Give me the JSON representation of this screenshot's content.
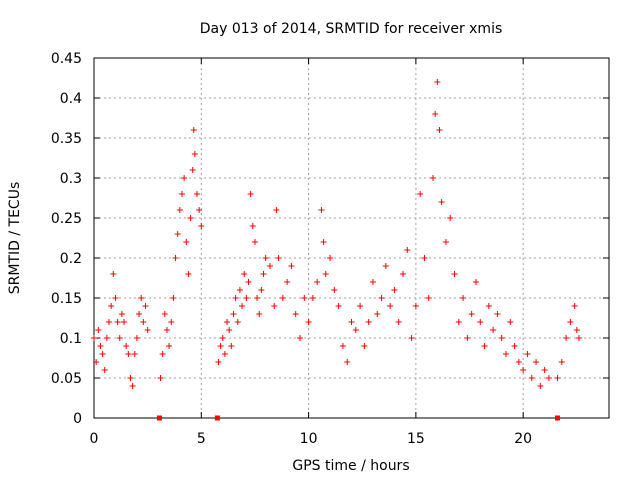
{
  "chart_data": {
    "type": "scatter",
    "title": "Day 013 of 2014, SRMTID for receiver xmis",
    "xlabel": "GPS time / hours",
    "ylabel": "SRMTID / TECUs",
    "xlim": [
      0,
      24
    ],
    "ylim": [
      0,
      0.45
    ],
    "xticks": [
      0,
      5,
      10,
      15,
      20
    ],
    "xtick_labels": [
      "0",
      "5",
      "10",
      "15",
      "20"
    ],
    "yticks": [
      0,
      0.05,
      0.1,
      0.15,
      0.2,
      0.25,
      0.3,
      0.35,
      0.4,
      0.45
    ],
    "ytick_labels": [
      "0",
      "0.05",
      "0.1",
      "0.15",
      "0.2",
      "0.25",
      "0.3",
      "0.35",
      "0.4",
      "0.45"
    ],
    "grid": true,
    "marker": "plus",
    "series_color": "#ff0000",
    "series": [
      {
        "name": "SRMTID",
        "points": [
          [
            0.0,
            0.1
          ],
          [
            0.1,
            0.07
          ],
          [
            0.2,
            0.11
          ],
          [
            0.3,
            0.09
          ],
          [
            0.4,
            0.08
          ],
          [
            0.5,
            0.06
          ],
          [
            0.6,
            0.1
          ],
          [
            0.7,
            0.12
          ],
          [
            0.8,
            0.14
          ],
          [
            0.9,
            0.18
          ],
          [
            1.0,
            0.15
          ],
          [
            1.1,
            0.12
          ],
          [
            1.2,
            0.1
          ],
          [
            1.3,
            0.13
          ],
          [
            1.4,
            0.12
          ],
          [
            1.5,
            0.09
          ],
          [
            1.6,
            0.08
          ],
          [
            1.7,
            0.05
          ],
          [
            1.8,
            0.04
          ],
          [
            1.9,
            0.08
          ],
          [
            2.0,
            0.1
          ],
          [
            2.1,
            0.13
          ],
          [
            2.2,
            0.15
          ],
          [
            2.3,
            0.12
          ],
          [
            2.4,
            0.14
          ],
          [
            2.5,
            0.11
          ],
          [
            3.1,
            0.05
          ],
          [
            3.2,
            0.08
          ],
          [
            3.3,
            0.13
          ],
          [
            3.4,
            0.11
          ],
          [
            3.5,
            0.09
          ],
          [
            3.6,
            0.12
          ],
          [
            3.7,
            0.15
          ],
          [
            3.8,
            0.2
          ],
          [
            3.9,
            0.23
          ],
          [
            4.0,
            0.26
          ],
          [
            4.1,
            0.28
          ],
          [
            4.2,
            0.3
          ],
          [
            4.3,
            0.22
          ],
          [
            4.4,
            0.18
          ],
          [
            4.5,
            0.25
          ],
          [
            4.6,
            0.31
          ],
          [
            4.65,
            0.36
          ],
          [
            4.7,
            0.33
          ],
          [
            4.8,
            0.28
          ],
          [
            4.9,
            0.26
          ],
          [
            5.0,
            0.24
          ],
          [
            5.8,
            0.07
          ],
          [
            5.9,
            0.09
          ],
          [
            6.0,
            0.1
          ],
          [
            6.1,
            0.08
          ],
          [
            6.2,
            0.12
          ],
          [
            6.3,
            0.11
          ],
          [
            6.4,
            0.09
          ],
          [
            6.5,
            0.13
          ],
          [
            6.6,
            0.15
          ],
          [
            6.7,
            0.12
          ],
          [
            6.8,
            0.16
          ],
          [
            6.9,
            0.14
          ],
          [
            7.0,
            0.18
          ],
          [
            7.1,
            0.15
          ],
          [
            7.2,
            0.17
          ],
          [
            7.3,
            0.28
          ],
          [
            7.4,
            0.24
          ],
          [
            7.5,
            0.22
          ],
          [
            7.6,
            0.15
          ],
          [
            7.7,
            0.13
          ],
          [
            7.8,
            0.16
          ],
          [
            7.9,
            0.18
          ],
          [
            8.0,
            0.2
          ],
          [
            8.2,
            0.19
          ],
          [
            8.4,
            0.14
          ],
          [
            8.5,
            0.26
          ],
          [
            8.6,
            0.2
          ],
          [
            8.8,
            0.15
          ],
          [
            9.0,
            0.17
          ],
          [
            9.2,
            0.19
          ],
          [
            9.4,
            0.13
          ],
          [
            9.6,
            0.1
          ],
          [
            9.8,
            0.15
          ],
          [
            10.0,
            0.12
          ],
          [
            10.2,
            0.15
          ],
          [
            10.4,
            0.17
          ],
          [
            10.6,
            0.26
          ],
          [
            10.7,
            0.22
          ],
          [
            10.8,
            0.18
          ],
          [
            11.0,
            0.2
          ],
          [
            11.2,
            0.16
          ],
          [
            11.4,
            0.14
          ],
          [
            11.6,
            0.09
          ],
          [
            11.8,
            0.07
          ],
          [
            12.0,
            0.12
          ],
          [
            12.2,
            0.11
          ],
          [
            12.4,
            0.14
          ],
          [
            12.6,
            0.09
          ],
          [
            12.8,
            0.12
          ],
          [
            13.0,
            0.17
          ],
          [
            13.2,
            0.13
          ],
          [
            13.4,
            0.15
          ],
          [
            13.6,
            0.19
          ],
          [
            13.8,
            0.14
          ],
          [
            14.0,
            0.16
          ],
          [
            14.2,
            0.12
          ],
          [
            14.4,
            0.18
          ],
          [
            14.6,
            0.21
          ],
          [
            14.8,
            0.1
          ],
          [
            15.0,
            0.14
          ],
          [
            15.2,
            0.28
          ],
          [
            15.4,
            0.2
          ],
          [
            15.6,
            0.15
          ],
          [
            15.8,
            0.3
          ],
          [
            15.9,
            0.38
          ],
          [
            16.0,
            0.42
          ],
          [
            16.1,
            0.36
          ],
          [
            16.2,
            0.27
          ],
          [
            16.4,
            0.22
          ],
          [
            16.6,
            0.25
          ],
          [
            16.8,
            0.18
          ],
          [
            17.0,
            0.12
          ],
          [
            17.2,
            0.15
          ],
          [
            17.4,
            0.1
          ],
          [
            17.6,
            0.13
          ],
          [
            17.8,
            0.17
          ],
          [
            18.0,
            0.12
          ],
          [
            18.2,
            0.09
          ],
          [
            18.4,
            0.14
          ],
          [
            18.6,
            0.11
          ],
          [
            18.8,
            0.13
          ],
          [
            19.0,
            0.1
          ],
          [
            19.2,
            0.08
          ],
          [
            19.4,
            0.12
          ],
          [
            19.6,
            0.09
          ],
          [
            19.8,
            0.07
          ],
          [
            20.0,
            0.06
          ],
          [
            20.2,
            0.08
          ],
          [
            20.4,
            0.05
          ],
          [
            20.6,
            0.07
          ],
          [
            20.8,
            0.04
          ],
          [
            21.0,
            0.06
          ],
          [
            21.2,
            0.05
          ],
          [
            21.6,
            0.05
          ],
          [
            21.8,
            0.07
          ],
          [
            22.0,
            0.1
          ],
          [
            22.2,
            0.12
          ],
          [
            22.4,
            0.14
          ],
          [
            22.5,
            0.11
          ],
          [
            22.6,
            0.1
          ]
        ]
      }
    ],
    "zero_markers_x": [
      3.05,
      5.75,
      21.6
    ]
  }
}
